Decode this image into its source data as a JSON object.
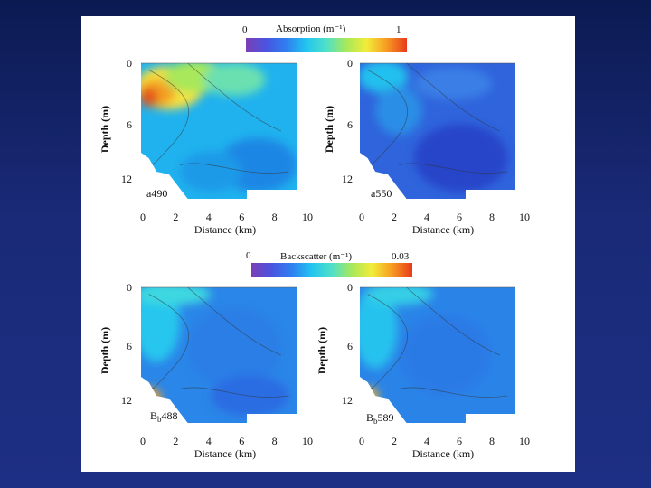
{
  "chart_data": [
    {
      "type": "heatmap",
      "id": "a490",
      "panel_label": "a490",
      "colorbar": {
        "title": "Absorption (m⁻¹)",
        "min_label": "0",
        "max_label": "1",
        "range": [
          0,
          1
        ]
      },
      "xlabel": "Distance (km)",
      "ylabel": "Depth (m)",
      "x_ticks": [
        "0",
        "2",
        "4",
        "6",
        "8",
        "10"
      ],
      "y_ticks": [
        "0",
        "6",
        "12"
      ],
      "xlim": [
        0,
        10
      ],
      "ylim": [
        0,
        12
      ],
      "notes": "High absorption (~0.9) near x 0-3 km at 2-5 m depth, decreasing offshore to ~0.45"
    },
    {
      "type": "heatmap",
      "id": "a550",
      "panel_label": "a550",
      "colorbar": {
        "title": "Absorption (m⁻¹)",
        "min_label": "0",
        "max_label": "1",
        "range": [
          0,
          1
        ]
      },
      "xlabel": "Distance (km)",
      "ylabel": "Depth (m)",
      "x_ticks": [
        "0",
        "2",
        "4",
        "6",
        "8",
        "10"
      ],
      "y_ticks": [
        "0",
        "6",
        "12"
      ],
      "xlim": [
        0,
        10
      ],
      "ylim": [
        0,
        12
      ],
      "notes": "Low absorption (~0.2) throughout, slightly higher (~0.35) nearshore at surface"
    },
    {
      "type": "heatmap",
      "id": "bb488",
      "panel_label_main": "B",
      "panel_label_sub": "b",
      "panel_label_suffix": "488",
      "colorbar": {
        "title": "Backscatter (m⁻¹)",
        "min_label": "0",
        "max_label": "0.03",
        "range": [
          0,
          0.03
        ]
      },
      "xlabel": "Distance (km)",
      "ylabel": "Depth (m)",
      "x_ticks": [
        "0",
        "2",
        "4",
        "6",
        "8",
        "10"
      ],
      "y_ticks": [
        "0",
        "6",
        "12"
      ],
      "xlim": [
        0,
        10
      ],
      "ylim": [
        0,
        12
      ],
      "notes": "Backscatter ~0.012 nearshore, ~0.006 offshore, peak ~0.03 at bottom near x=0.5 km"
    },
    {
      "type": "heatmap",
      "id": "bb589",
      "panel_label_main": "B",
      "panel_label_sub": "b",
      "panel_label_suffix": "589",
      "colorbar": {
        "title": "Backscatter (m⁻¹)",
        "min_label": "0",
        "max_label": "0.03",
        "range": [
          0,
          0.03
        ]
      },
      "xlabel": "Distance (km)",
      "ylabel": "Depth (m)",
      "x_ticks": [
        "0",
        "2",
        "4",
        "6",
        "8",
        "10"
      ],
      "y_ticks": [
        "0",
        "6",
        "12"
      ],
      "xlim": [
        0,
        10
      ],
      "ylim": [
        0,
        12
      ],
      "notes": "Similar to Bb488 with slightly lower values"
    }
  ],
  "colors": {
    "background_top": "#0c1a52",
    "background_bottom": "#1d2f84",
    "panel": "#ffffff",
    "low": "#2e4bd6",
    "mid": "#1fc8e8",
    "high": "#ffd700",
    "peak": "#e25b12"
  },
  "colormap_stops": [
    "#7b3fb5",
    "#4a54e0",
    "#2f7ff0",
    "#22c5f0",
    "#4fe0c8",
    "#a8e85a",
    "#f2ec3a",
    "#f79a22",
    "#e83a1c"
  ]
}
